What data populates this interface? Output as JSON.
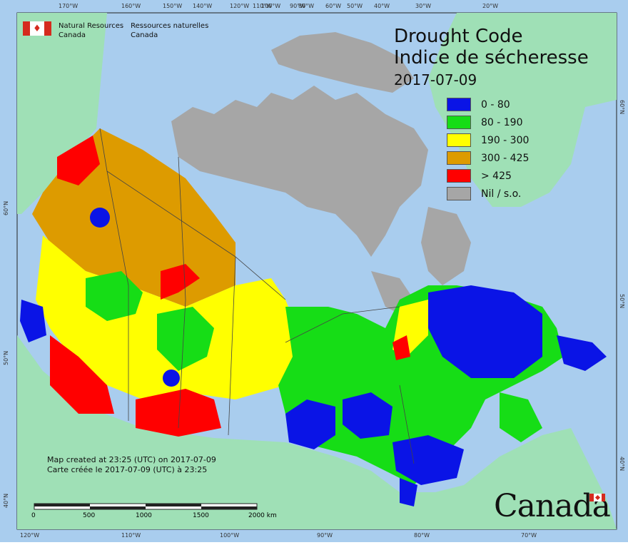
{
  "title": {
    "en": "Drought Code",
    "fr": "Indice de sécheresse",
    "date": "2017-07-09"
  },
  "agency": {
    "en_line1": "Natural Resources",
    "en_line2": "Canada",
    "fr_line1": "Ressources naturelles",
    "fr_line2": "Canada"
  },
  "legend": [
    {
      "label": "0 - 80",
      "color": "#0a14e6"
    },
    {
      "label": "80 - 190",
      "color": "#16dd16"
    },
    {
      "label": "190 - 300",
      "color": "#ffff00"
    },
    {
      "label": "300 - 425",
      "color": "#dd9b00"
    },
    {
      "label": "> 425",
      "color": "#ff0000"
    },
    {
      "label": "Nil / s.o.",
      "color": "#a6a6a6"
    }
  ],
  "credit": {
    "en": "Map created at 23:25 (UTC) on 2017-07-09",
    "fr": "Carte créée le 2017-07-09 (UTC) à 23:25"
  },
  "scale": {
    "ticks": [
      "0",
      "500",
      "1000",
      "1500",
      "2000 km"
    ]
  },
  "graticule": {
    "top": [
      "170°W",
      "160°W",
      "150°W",
      "140°W",
      "120°W",
      "110°W",
      "100°W",
      "90°W",
      "80°W",
      "60°W",
      "50°W",
      "40°W",
      "30°W",
      "20°W"
    ],
    "bottom": [
      "120°W",
      "110°W",
      "100°W",
      "90°W",
      "80°W",
      "70°W"
    ],
    "left": [
      "60°N",
      "50°N",
      "40°N"
    ],
    "right": [
      "60°N",
      "50°N",
      "40°N"
    ]
  },
  "wordmark": "Canada",
  "colors": {
    "ocean": "#a9cdee",
    "other_land": "#9fe0b6",
    "no_data": "#a6a6a6",
    "border": "#444444"
  }
}
